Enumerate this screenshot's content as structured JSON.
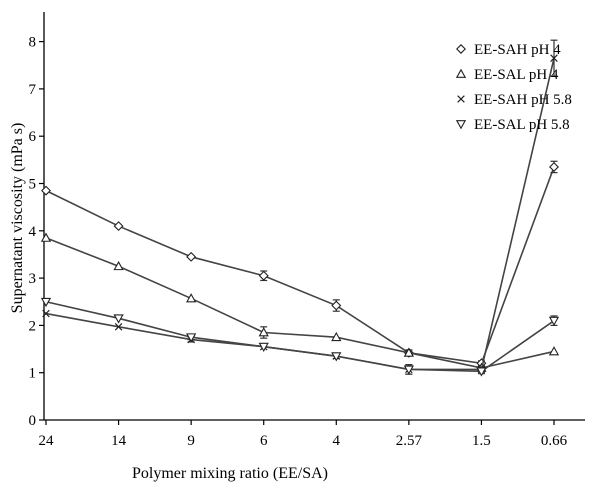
{
  "chart_data": {
    "type": "line",
    "title": "",
    "xlabel": "Polymer mixing ratio (EE/SA)",
    "ylabel": "Supernatant viscosity (mPa s)",
    "categories": [
      "24",
      "14",
      "9",
      "6",
      "4",
      "2.57",
      "1.5",
      "0.66"
    ],
    "ylim": [
      0,
      8.5
    ],
    "yticks": [
      "0",
      "1",
      "2",
      "3",
      "4",
      "5",
      "6",
      "7",
      "8"
    ],
    "legend_position": "top-right",
    "series": [
      {
        "name": "EE-SAH pH 4",
        "marker": "diamond",
        "values": [
          4.85,
          4.1,
          3.45,
          3.05,
          2.42,
          1.42,
          1.2,
          5.35
        ],
        "errors": [
          0,
          0,
          0,
          0.1,
          0.12,
          0.06,
          0.05,
          0.12
        ]
      },
      {
        "name": "EE-SAL pH 4",
        "marker": "triangle-up",
        "values": [
          3.85,
          3.25,
          2.57,
          1.85,
          1.75,
          1.42,
          1.1,
          1.45
        ],
        "errors": [
          0,
          0,
          0,
          0.12,
          0,
          0.06,
          0.05,
          0
        ]
      },
      {
        "name": "EE-SAH pH 5.8",
        "marker": "x",
        "values": [
          2.25,
          1.97,
          1.7,
          1.55,
          1.35,
          1.07,
          1.07,
          7.65
        ],
        "errors": [
          0,
          0,
          0.05,
          0,
          0.05,
          0.1,
          0.05,
          0.38
        ]
      },
      {
        "name": "EE-SAL pH 5.8",
        "marker": "triangle-down",
        "values": [
          2.5,
          2.15,
          1.75,
          1.55,
          1.35,
          1.07,
          1.03,
          2.1
        ],
        "errors": [
          0,
          0,
          0.05,
          0,
          0,
          0.1,
          0.05,
          0.1
        ]
      }
    ]
  }
}
